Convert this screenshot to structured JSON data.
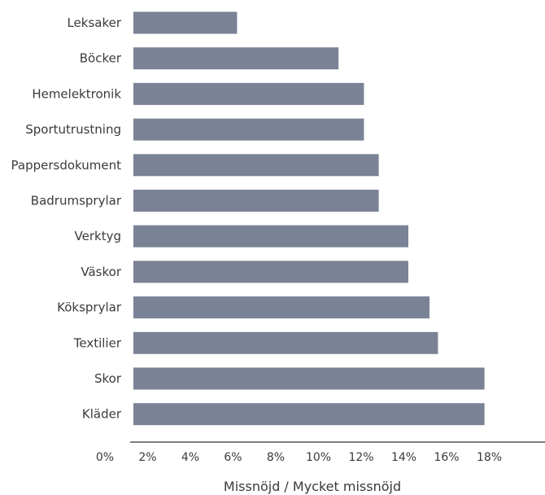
{
  "chart_data": {
    "type": "bar",
    "orientation": "horizontal",
    "categories": [
      "Leksaker",
      "Böcker",
      "Hemelektronik",
      "Sportutrustning",
      "Pappersdokument",
      "Badrumsprylar",
      "Verktyg",
      "Väskor",
      "Köksprylar",
      "Textilier",
      "Skor",
      "Kläder"
    ],
    "values": [
      4.9,
      9.7,
      10.9,
      10.9,
      11.6,
      11.6,
      13.0,
      13.0,
      14.0,
      14.4,
      16.6,
      16.6
    ],
    "xlabel": "Missnöjd / Mycket missnöjd",
    "ylabel": "",
    "xticks": [
      "0%",
      "2%",
      "4%",
      "6%",
      "8%",
      "10%",
      "12%",
      "14%",
      "16%",
      "18%"
    ],
    "xtick_values": [
      0,
      2,
      4,
      6,
      8,
      10,
      12,
      14,
      16,
      18
    ],
    "xlim": [
      0,
      18
    ],
    "grid": false,
    "bar_color": "#7a8296",
    "axis_color": "#333333"
  }
}
